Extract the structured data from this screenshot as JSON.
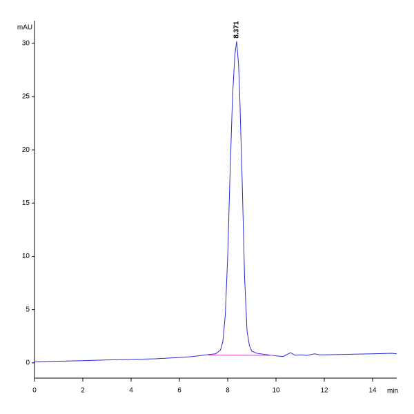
{
  "chart_data": {
    "type": "line",
    "y_label": "mAU",
    "x_label": "min",
    "xlim": [
      0,
      15
    ],
    "xticks": [
      0,
      2,
      4,
      6,
      8,
      10,
      12,
      14
    ],
    "ylim": [
      -1.5,
      31.8
    ],
    "yticks": [
      0,
      5,
      10,
      15,
      20,
      25,
      30
    ],
    "series": [
      {
        "color": "#2b2bd6",
        "x": [
          0,
          1,
          2,
          3,
          4,
          5,
          6,
          6.5,
          7,
          7.3,
          7.5,
          7.7,
          7.8,
          7.9,
          8.0,
          8.1,
          8.2,
          8.3,
          8.371,
          8.45,
          8.5,
          8.6,
          8.7,
          8.8,
          8.9,
          9.0,
          9.2,
          9.5,
          10,
          10.3,
          10.6,
          10.8,
          11,
          11.3,
          11.6,
          11.8,
          12,
          13,
          14,
          14.8,
          15
        ],
        "values": [
          0.1,
          0.15,
          0.2,
          0.27,
          0.32,
          0.38,
          0.5,
          0.58,
          0.72,
          0.8,
          0.85,
          1.2,
          2.0,
          4.5,
          10,
          18,
          25,
          29,
          30.2,
          28,
          25,
          17,
          8,
          3,
          1.6,
          1.1,
          0.9,
          0.8,
          0.65,
          0.6,
          0.95,
          0.7,
          0.75,
          0.7,
          0.85,
          0.75,
          0.75,
          0.8,
          0.85,
          0.9,
          0.85
        ]
      },
      {
        "color": "#e040e0",
        "x": [
          7.2,
          9.9
        ],
        "values": [
          0.72,
          0.7
        ]
      }
    ],
    "annotations": [
      {
        "x": 8.371,
        "y": 30.2,
        "text": "8.371"
      }
    ]
  }
}
